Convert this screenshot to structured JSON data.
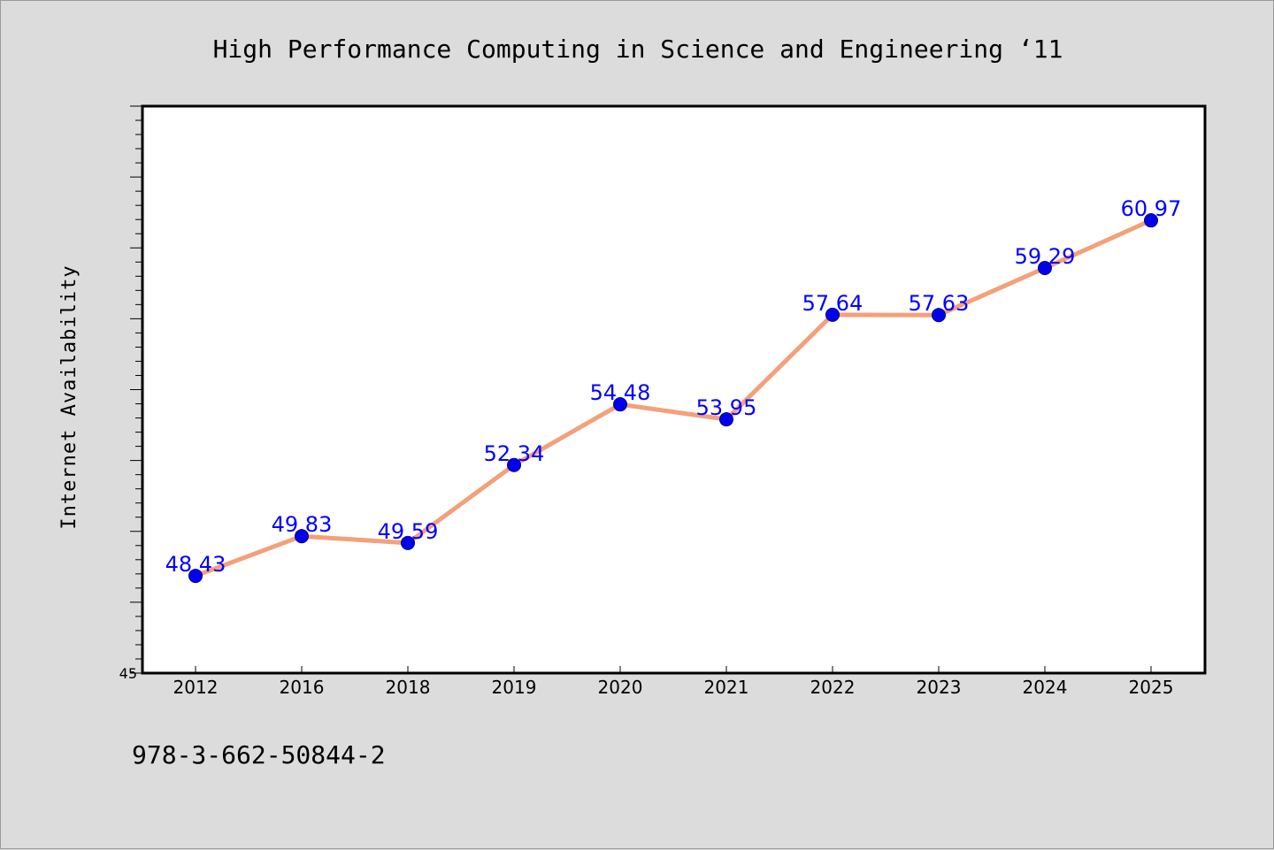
{
  "chart_data": {
    "type": "line",
    "title": "High Performance Computing in Science and Engineering  ‘11",
    "ylabel": "Internet Availability",
    "xlabel": "",
    "categories": [
      "2012",
      "2016",
      "2018",
      "2019",
      "2020",
      "2021",
      "2022",
      "2023",
      "2024",
      "2025"
    ],
    "series": [
      {
        "values": [
          48.43,
          49.83,
          49.59,
          52.34,
          54.48,
          53.95,
          57.64,
          57.63,
          59.29,
          60.97
        ],
        "labels": [
          "48.43",
          "49.83",
          "49.59",
          "52.34",
          "54.48",
          "53.95",
          "57.64",
          "57.63",
          "59.29",
          "60.97"
        ],
        "line_color": "#f4a07a",
        "marker_color": "#0000ee"
      }
    ],
    "ylim": [
      45,
      65
    ],
    "ytick_labels": [
      "45"
    ],
    "grid": false,
    "legend": "none"
  },
  "footer_text": "978-3-662-50844-2",
  "colors": {
    "background": "#dcdcdc",
    "plot_background": "#ffffff",
    "label_color": "#0000ff"
  }
}
